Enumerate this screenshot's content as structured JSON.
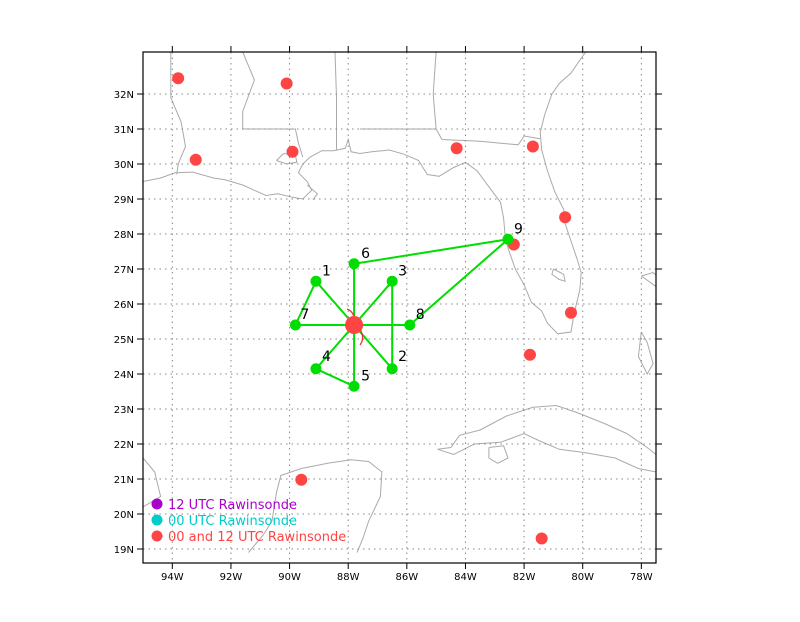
{
  "map": {
    "lon_range": [
      -95,
      -77.5
    ],
    "lat_range": [
      18.6,
      33.2
    ],
    "colors": {
      "frame": "#000000",
      "grid": "#888888",
      "coast": "#aaaaaa",
      "drop": "#00dd00",
      "raob_00_12": "#ff4444",
      "raob_12": "#aa00cc",
      "raob_00": "#00cccc",
      "storm": "#ff4444",
      "storm_arc": "#ee3333"
    }
  },
  "axes": {
    "lon_ticks": [
      {
        "lon": -94,
        "label": "94W"
      },
      {
        "lon": -92,
        "label": "92W"
      },
      {
        "lon": -90,
        "label": "90W"
      },
      {
        "lon": -88,
        "label": "88W"
      },
      {
        "lon": -86,
        "label": "86W"
      },
      {
        "lon": -84,
        "label": "84W"
      },
      {
        "lon": -82,
        "label": "82W"
      },
      {
        "lon": -80,
        "label": "80W"
      },
      {
        "lon": -78,
        "label": "78W"
      }
    ],
    "lat_ticks": [
      {
        "lat": 19,
        "label": "19N"
      },
      {
        "lat": 20,
        "label": "20N"
      },
      {
        "lat": 21,
        "label": "21N"
      },
      {
        "lat": 22,
        "label": "22N"
      },
      {
        "lat": 23,
        "label": "23N"
      },
      {
        "lat": 24,
        "label": "24N"
      },
      {
        "lat": 25,
        "label": "25N"
      },
      {
        "lat": 26,
        "label": "26N"
      },
      {
        "lat": 27,
        "label": "27N"
      },
      {
        "lat": 28,
        "label": "28N"
      },
      {
        "lat": 29,
        "label": "29N"
      },
      {
        "lat": 30,
        "label": "30N"
      },
      {
        "lat": 31,
        "label": "31N"
      },
      {
        "lat": 32,
        "label": "32N"
      }
    ]
  },
  "storm_center": {
    "lon": -87.8,
    "lat": 25.4
  },
  "dropsondes": [
    {
      "id": "1",
      "lon": -89.1,
      "lat": 26.65
    },
    {
      "id": "2",
      "lon": -86.5,
      "lat": 24.15
    },
    {
      "id": "3",
      "lon": -86.5,
      "lat": 26.65
    },
    {
      "id": "4",
      "lon": -89.1,
      "lat": 24.15
    },
    {
      "id": "5",
      "lon": -87.8,
      "lat": 23.65
    },
    {
      "id": "6",
      "lon": -87.8,
      "lat": 27.15
    },
    {
      "id": "7",
      "lon": -89.8,
      "lat": 25.4
    },
    {
      "id": "8",
      "lon": -85.9,
      "lat": 25.4
    },
    {
      "id": "9",
      "lon": -82.55,
      "lat": 27.85
    }
  ],
  "flight_path": [
    "7",
    "1",
    "center",
    "2",
    "3",
    "center",
    "4",
    "5",
    "center",
    "6",
    "9",
    "8",
    "center",
    "7"
  ],
  "rawinsondes": [
    {
      "lon": -93.8,
      "lat": 32.45
    },
    {
      "lon": -90.1,
      "lat": 32.3
    },
    {
      "lon": -93.2,
      "lat": 30.12
    },
    {
      "lon": -89.9,
      "lat": 30.35
    },
    {
      "lon": -84.3,
      "lat": 30.45
    },
    {
      "lon": -81.7,
      "lat": 30.5
    },
    {
      "lon": -80.6,
      "lat": 28.48
    },
    {
      "lon": -82.35,
      "lat": 27.7
    },
    {
      "lon": -80.4,
      "lat": 25.75
    },
    {
      "lon": -81.8,
      "lat": 24.55
    },
    {
      "lon": -89.6,
      "lat": 20.98
    },
    {
      "lon": -81.4,
      "lat": 19.3
    }
  ],
  "legend": [
    {
      "label": "12 UTC Rawinsonde",
      "color": "#aa00cc"
    },
    {
      "label": "00 UTC Rawinsonde",
      "color": "#00cccc"
    },
    {
      "label": "00 and 12 UTC Rawinsonde",
      "color": "#ff4444"
    }
  ]
}
